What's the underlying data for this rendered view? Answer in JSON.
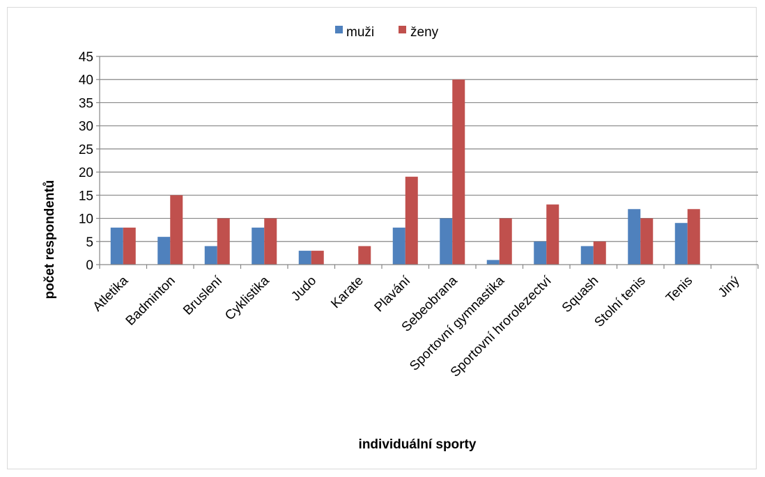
{
  "chart_data": {
    "type": "bar",
    "categories": [
      "Atletika",
      "Badminton",
      "Bruslení",
      "Cyklistika",
      "Judo",
      "Karate",
      "Plavání",
      "Sebeobrana",
      "Sportovní gymnastika",
      "Sportovní hrorolezectví",
      "Squash",
      "Stolní tenis",
      "Tenis",
      "Jiný"
    ],
    "series": [
      {
        "name": "muži",
        "color": "#4f81bd",
        "values": [
          8,
          6,
          4,
          8,
          3,
          0,
          8,
          10,
          1,
          5,
          4,
          12,
          9,
          0
        ]
      },
      {
        "name": "ženy",
        "color": "#c0504d",
        "values": [
          8,
          15,
          10,
          10,
          3,
          4,
          19,
          40,
          10,
          13,
          5,
          10,
          12,
          0
        ]
      }
    ],
    "xlabel": "individuální sporty",
    "ylabel": "počet respondentů",
    "ylim": [
      0,
      45
    ],
    "yticks": [
      "0",
      "5",
      "10",
      "15",
      "20",
      "25",
      "30",
      "35",
      "40",
      "45"
    ],
    "grid": true,
    "legend": "top-center"
  }
}
